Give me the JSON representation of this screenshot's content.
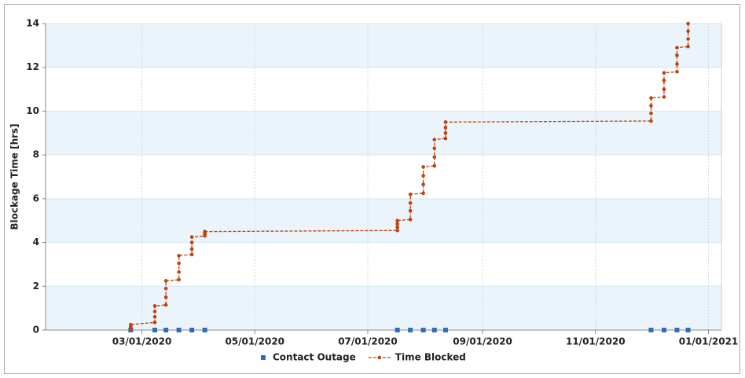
{
  "chart_data": {
    "type": "line",
    "ylabel": "Blockage Time [hrs]",
    "xlim": [
      "2020-01-09",
      "2021-01-08"
    ],
    "ylim": [
      0,
      14
    ],
    "yticks": [
      0,
      2,
      4,
      6,
      8,
      10,
      12,
      14
    ],
    "xticks": [
      {
        "value": "2020-03-01",
        "label": "03/01/2020"
      },
      {
        "value": "2020-05-01",
        "label": "05/01/2020"
      },
      {
        "value": "2020-07-01",
        "label": "07/01/2020"
      },
      {
        "value": "2020-09-01",
        "label": "09/01/2020"
      },
      {
        "value": "2020-11-01",
        "label": "11/01/2020"
      },
      {
        "value": "2021-01-01",
        "label": "01/01/2021"
      }
    ],
    "grid": true,
    "legend": "bottom",
    "series": [
      {
        "name": "Contact Outage",
        "color": "#2f6fb8",
        "marker": "square",
        "x": [
          "2020-02-24",
          "2020-03-08",
          "2020-03-14",
          "2020-03-21",
          "2020-03-28",
          "2020-04-04",
          "2020-07-17",
          "2020-07-24",
          "2020-07-31",
          "2020-08-06",
          "2020-08-12",
          "2020-12-01",
          "2020-12-08",
          "2020-12-15",
          "2020-12-21"
        ],
        "values": [
          0,
          0,
          0,
          0,
          0,
          0,
          0,
          0,
          0,
          0,
          0,
          0,
          0,
          0,
          0
        ]
      },
      {
        "name": "Time Blocked",
        "color": "#c2410c",
        "marker": "circle",
        "x": [
          "2020-02-24",
          "2020-02-24",
          "2020-02-24",
          "2020-02-24",
          "2020-03-08",
          "2020-03-08",
          "2020-03-08",
          "2020-03-08",
          "2020-03-14",
          "2020-03-14",
          "2020-03-14",
          "2020-03-14",
          "2020-03-21",
          "2020-03-21",
          "2020-03-21",
          "2020-03-21",
          "2020-03-28",
          "2020-03-28",
          "2020-03-28",
          "2020-03-28",
          "2020-04-04",
          "2020-04-04",
          "2020-04-04",
          "2020-04-04",
          "2020-07-17",
          "2020-07-17",
          "2020-07-17",
          "2020-07-17",
          "2020-07-24",
          "2020-07-24",
          "2020-07-24",
          "2020-07-24",
          "2020-07-31",
          "2020-07-31",
          "2020-07-31",
          "2020-07-31",
          "2020-08-06",
          "2020-08-06",
          "2020-08-06",
          "2020-08-06",
          "2020-08-12",
          "2020-08-12",
          "2020-08-12",
          "2020-08-12",
          "2020-12-01",
          "2020-12-01",
          "2020-12-01",
          "2020-12-01",
          "2020-12-08",
          "2020-12-08",
          "2020-12-08",
          "2020-12-08",
          "2020-12-15",
          "2020-12-15",
          "2020-12-15",
          "2020-12-15",
          "2020-12-21",
          "2020-12-21",
          "2020-12-21",
          "2020-12-21"
        ],
        "values": [
          0.05,
          0.12,
          0.18,
          0.25,
          0.35,
          0.6,
          0.85,
          1.1,
          1.15,
          1.5,
          1.9,
          2.25,
          2.3,
          2.65,
          3.05,
          3.4,
          3.45,
          3.7,
          4.0,
          4.25,
          4.3,
          4.37,
          4.43,
          4.5,
          4.55,
          4.7,
          4.85,
          5.0,
          5.05,
          5.45,
          5.8,
          6.2,
          6.25,
          6.65,
          7.05,
          7.45,
          7.5,
          7.9,
          8.3,
          8.7,
          8.75,
          9.0,
          9.25,
          9.5,
          9.55,
          9.9,
          10.25,
          10.6,
          10.65,
          11.0,
          11.4,
          11.75,
          11.8,
          12.15,
          12.55,
          12.9,
          12.95,
          13.3,
          13.65,
          14.0
        ]
      }
    ]
  }
}
